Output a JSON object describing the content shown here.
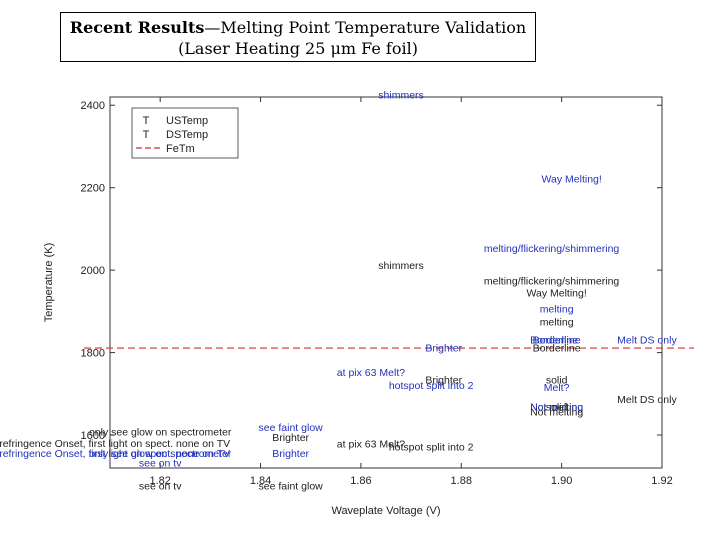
{
  "slide": {
    "title_bold": "Recent Results",
    "title_rest": "—Melting Point Temperature Validation",
    "subtitle": "(Laser Heating 25 μm Fe foil)"
  },
  "chart_data": {
    "type": "scatter",
    "xlabel": "Waveplate Voltage (V)",
    "ylabel": "Temperature (K)",
    "xlim": [
      1.81,
      1.92
    ],
    "ylim": [
      1520,
      2420
    ],
    "xticks": [
      1.82,
      1.84,
      1.86,
      1.88,
      1.9,
      1.92
    ],
    "xtick_labels": [
      "1.82",
      "1.84",
      "1.86",
      "1.88",
      "1.90",
      "1.92"
    ],
    "yticks": [
      1600,
      1800,
      2000,
      2200,
      2400
    ],
    "ytick_labels": [
      "1600",
      "1800",
      "2000",
      "2200",
      "2400"
    ],
    "legend": [
      {
        "marker": "T",
        "label": "USTemp",
        "style": "text",
        "color": "#222222"
      },
      {
        "marker": "T",
        "label": "DSTemp",
        "style": "text",
        "color": "#222222"
      },
      {
        "marker": "",
        "label": "FeTm",
        "style": "dashed",
        "color": "#cc3333"
      }
    ],
    "reference_line": {
      "name": "FeTm",
      "y": 1811,
      "color": "#cc3333"
    },
    "series": [
      {
        "name": "USTemp",
        "color": "#2233bb",
        "points": [
          {
            "x": 1.868,
            "y": 2416,
            "label": "shimmers"
          },
          {
            "x": 1.902,
            "y": 2212,
            "label": "Way Melting!"
          },
          {
            "x": 1.898,
            "y": 2044,
            "label": "melting/flickering/shimmering"
          },
          {
            "x": 1.899,
            "y": 1897,
            "label": "melting"
          },
          {
            "x": 1.899,
            "y": 1822,
            "label": "Borderline"
          },
          {
            "x": 1.8985,
            "y": 1822,
            "label": "Borderline"
          },
          {
            "x": 1.917,
            "y": 1822,
            "label": "Melt DS only"
          },
          {
            "x": 1.8765,
            "y": 1803,
            "label": "Brighter"
          },
          {
            "x": 1.862,
            "y": 1743,
            "label": "at pix 63 Melt?"
          },
          {
            "x": 1.874,
            "y": 1712,
            "label": "hotspot split into 2"
          },
          {
            "x": 1.899,
            "y": 1707,
            "label": "Melt?"
          },
          {
            "x": 1.899,
            "y": 1659,
            "label": "Not melting"
          },
          {
            "x": 1.899,
            "y": 1659,
            "label": "Not melting"
          },
          {
            "x": 1.846,
            "y": 1610,
            "label": "see faint glow"
          },
          {
            "x": 1.82,
            "y": 1547,
            "label": "only see glow on spectrometer"
          },
          {
            "x": 1.81,
            "y": 1547,
            "label": "Birefringence Onset, first light on spect. none on TV"
          },
          {
            "x": 1.846,
            "y": 1547,
            "label": "Brighter"
          },
          {
            "x": 1.82,
            "y": 1524,
            "label": "see on tv"
          }
        ]
      },
      {
        "name": "DSTemp",
        "color": "#222222",
        "points": [
          {
            "x": 1.868,
            "y": 2003,
            "label": "shimmers"
          },
          {
            "x": 1.898,
            "y": 1965,
            "label": "melting/flickering/shimmering"
          },
          {
            "x": 1.899,
            "y": 1936,
            "label": "Way Melting!"
          },
          {
            "x": 1.899,
            "y": 1866,
            "label": "melting"
          },
          {
            "x": 1.899,
            "y": 1803,
            "label": "Borderline"
          },
          {
            "x": 1.8765,
            "y": 1725,
            "label": "Brighter"
          },
          {
            "x": 1.899,
            "y": 1725,
            "label": "solid"
          },
          {
            "x": 1.917,
            "y": 1678,
            "label": "Melt DS only"
          },
          {
            "x": 1.899,
            "y": 1660,
            "label": "solid"
          },
          {
            "x": 1.899,
            "y": 1647,
            "label": "Not melting"
          },
          {
            "x": 1.82,
            "y": 1599,
            "label": "only see glow on spectrometer"
          },
          {
            "x": 1.81,
            "y": 1571,
            "label": "Birefringence Onset, first light on spect. none on TV"
          },
          {
            "x": 1.846,
            "y": 1585,
            "label": "Brighter"
          },
          {
            "x": 1.862,
            "y": 1570,
            "label": "at pix 63 Melt?"
          },
          {
            "x": 1.874,
            "y": 1562,
            "label": "hotspot split into 2"
          },
          {
            "x": 1.846,
            "y": 1468,
            "label": "see faint glow"
          },
          {
            "x": 1.82,
            "y": 1468,
            "label": "see on tv"
          }
        ]
      }
    ]
  }
}
